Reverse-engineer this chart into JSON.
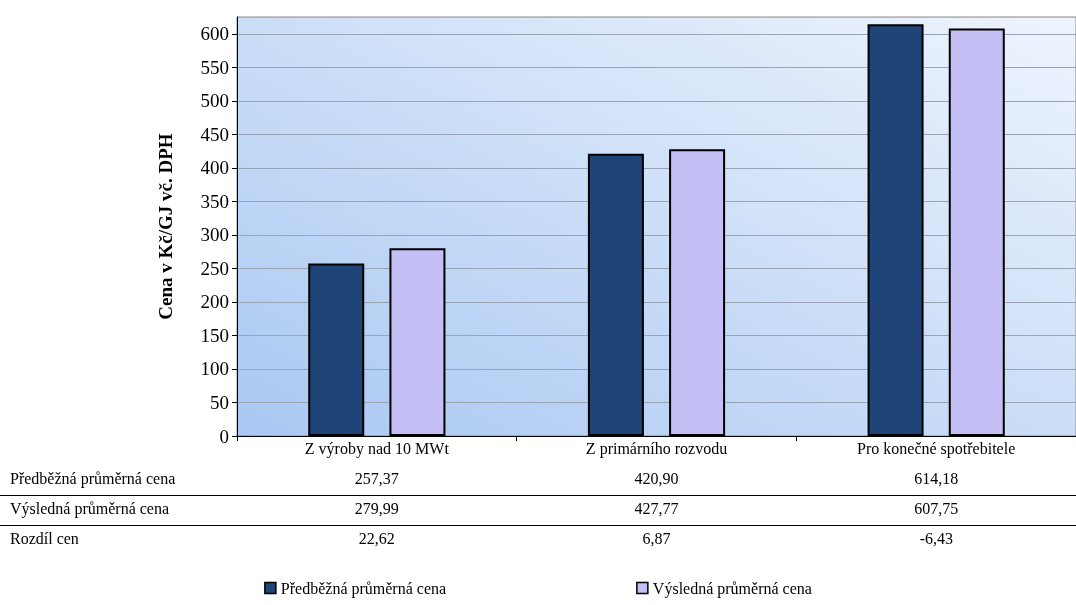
{
  "chart_data": {
    "type": "bar",
    "ylabel": "Cena v Kč/GJ vč. DPH",
    "categories": [
      "Z výroby nad 10 MWt",
      "Z primárního rozvodu",
      "Pro konečné spotřebitele"
    ],
    "series": [
      {
        "name": "Předběžná průměrná cena",
        "color": "#1f4478",
        "values": [
          257.37,
          420.9,
          614.18
        ],
        "value_labels": [
          "257,37",
          "420,90",
          "614,18"
        ]
      },
      {
        "name": "Výsledná průměrná cena",
        "color": "#c4bff5",
        "values": [
          279.99,
          427.77,
          607.75
        ],
        "value_labels": [
          "279,99",
          "427,77",
          "607,75"
        ]
      }
    ],
    "annotations": [
      "Rozdíl cen",
      "22,62",
      "6,87",
      "-6,43"
    ],
    "ylim": [
      0,
      625
    ],
    "yticks": [
      0,
      50,
      100,
      150,
      200,
      250,
      300,
      350,
      400,
      450,
      500,
      550,
      600
    ],
    "grid": "y",
    "legend": "bottom"
  }
}
